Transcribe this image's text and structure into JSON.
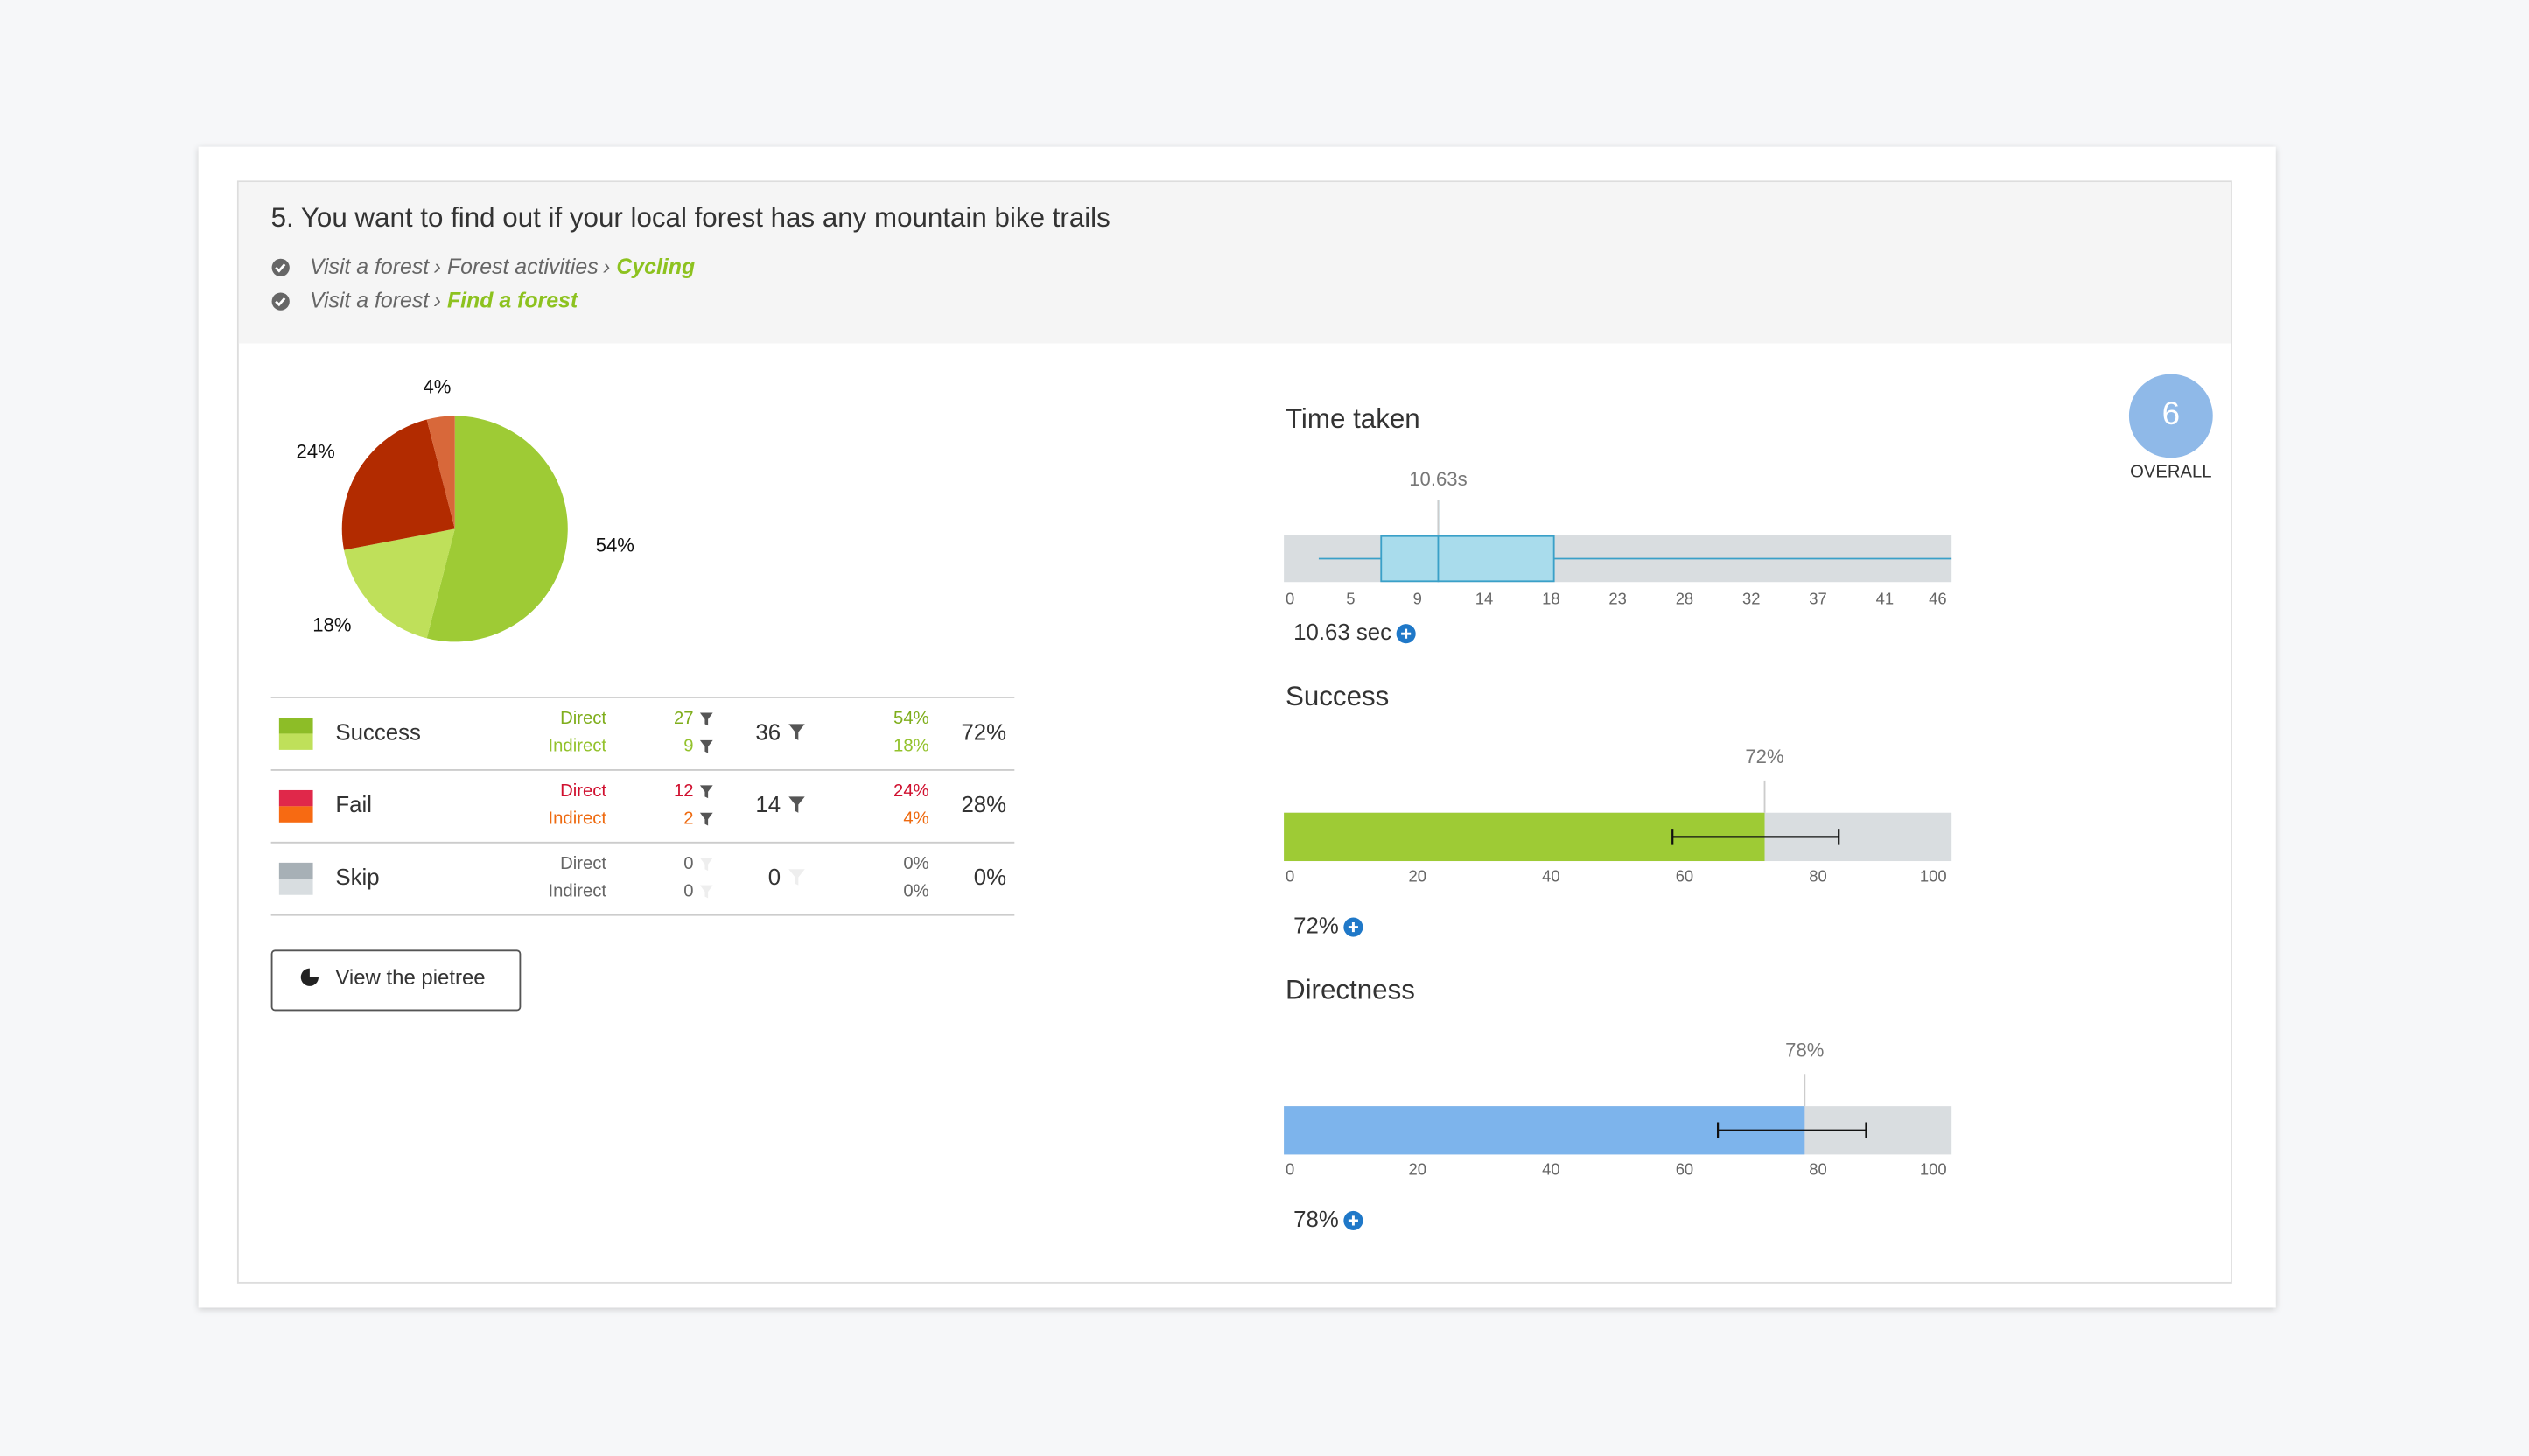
{
  "question": {
    "title": "5. You want to find out if your local forest has any mountain bike trails",
    "breadcrumbs": [
      {
        "path": [
          "Visit a forest",
          "Forest activities"
        ],
        "target": "Cycling"
      },
      {
        "path": [
          "Visit a forest"
        ],
        "target": "Find a forest"
      }
    ]
  },
  "pie": {
    "type": "pie",
    "values": [
      54,
      18,
      24,
      4
    ],
    "value_labels": [
      "54%",
      "18%",
      "24%",
      "4%"
    ],
    "colors": [
      "#9ecb35",
      "#bfe05a",
      "#b22b00",
      "#d8683a"
    ]
  },
  "table": {
    "rows": [
      {
        "name": "Success",
        "direct_label": "Direct",
        "indirect_label": "Indirect",
        "direct": 27,
        "indirect": 9,
        "total": 36,
        "direct_pct": "54%",
        "indirect_pct": "18%",
        "total_pct": "72%",
        "colors": [
          "#8dbd27",
          "#bfe05a"
        ],
        "text_colors": [
          "#7fae1c",
          "#93c22c"
        ]
      },
      {
        "name": "Fail",
        "direct_label": "Direct",
        "indirect_label": "Indirect",
        "direct": 12,
        "indirect": 2,
        "total": 14,
        "direct_pct": "24%",
        "indirect_pct": "4%",
        "total_pct": "28%",
        "colors": [
          "#e0284a",
          "#f76a12"
        ],
        "text_colors": [
          "#d0102f",
          "#ee6a10"
        ]
      },
      {
        "name": "Skip",
        "direct_label": "Direct",
        "indirect_label": "Indirect",
        "direct": 0,
        "indirect": 0,
        "total": 0,
        "direct_pct": "0%",
        "indirect_pct": "0%",
        "total_pct": "0%",
        "colors": [
          "#a7b0b6",
          "#d8dde0"
        ],
        "text_colors": [
          "#666666",
          "#666666"
        ]
      }
    ]
  },
  "button": "View the pietree",
  "overall": {
    "value": 6,
    "label": "OVERALL"
  },
  "time_taken": {
    "type": "box",
    "title": "Time taken",
    "whisker_low": 2.4,
    "q1": 6.7,
    "median": 10.63,
    "q3": 18.6,
    "whisker_high": 46,
    "median_label": "10.63s",
    "summary": "10.63 sec",
    "color": "#a9dcec",
    "xlim": [
      0,
      46
    ],
    "xticks": [
      0,
      {
        "value": 4.6,
        "label": "5"
      },
      {
        "value": 9.2,
        "label": "9"
      },
      {
        "value": 13.8,
        "label": "14"
      },
      {
        "value": 18.4,
        "label": "18"
      },
      23,
      {
        "value": 27.6,
        "label": "28"
      },
      {
        "value": 32.2,
        "label": "32"
      },
      {
        "value": 36.8,
        "label": "37"
      },
      {
        "value": 41.4,
        "label": "41"
      },
      46
    ]
  },
  "success": {
    "type": "bar",
    "title": "Success",
    "value": 72,
    "value_label": "72%",
    "ci": [
      58.2,
      83.1
    ],
    "summary": "72%",
    "color": "#9ecb35",
    "xlim": [
      0,
      100
    ],
    "xticks": [
      0,
      20,
      40,
      60,
      80,
      100
    ]
  },
  "directness": {
    "type": "bar",
    "title": "Directness",
    "value": 78,
    "value_label": "78%",
    "ci": [
      65,
      87.2
    ],
    "summary": "78%",
    "color": "#7db4ec",
    "xlim": [
      0,
      100
    ],
    "xticks": [
      0,
      20,
      40,
      60,
      80,
      100
    ]
  }
}
